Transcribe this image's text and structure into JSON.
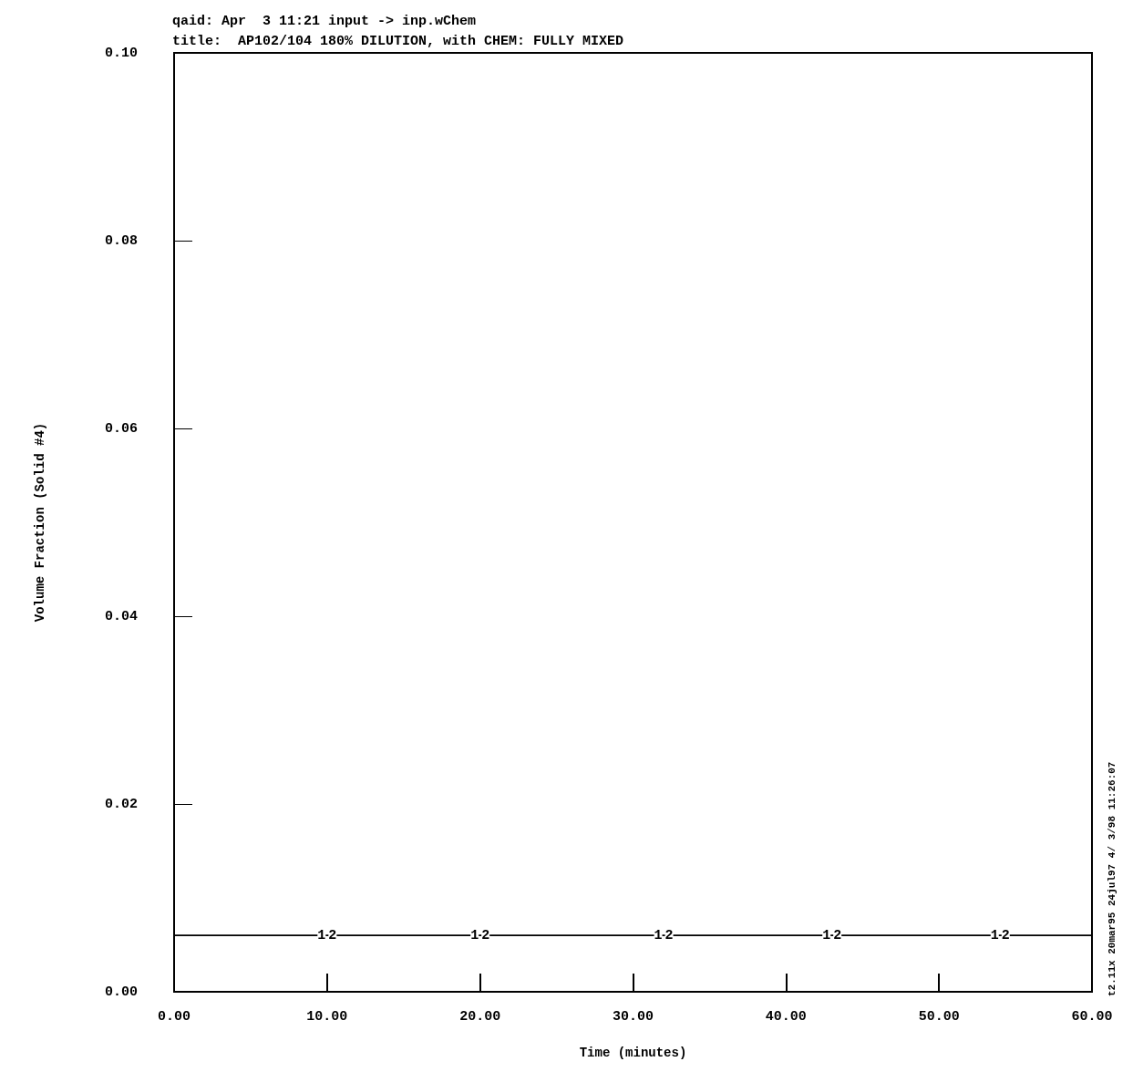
{
  "chart_data": {
    "type": "line",
    "title": "title:  AP102/104 180% DILUTION, with CHEM: FULLY MIXED",
    "xlabel": "Time (minutes)",
    "ylabel": "Volume Fraction (Solid #4)",
    "annotations": [
      "qaid: Apr  3 11:21 input -> inp.wChem",
      "t2.11x 20mar95 24jul97 4/ 3/98 11:26:07"
    ],
    "series": [
      {
        "name": "1",
        "color": "#000000",
        "x": [
          0,
          10,
          20,
          32,
          43,
          54,
          60
        ],
        "values": [
          0.006,
          0.006,
          0.006,
          0.006,
          0.006,
          0.006,
          0.006
        ]
      },
      {
        "name": "2",
        "color": "#000000",
        "x": [
          0,
          10,
          20,
          32,
          43,
          54,
          60
        ],
        "values": [
          0.006,
          0.006,
          0.006,
          0.006,
          0.006,
          0.006,
          0.006
        ]
      }
    ],
    "xlim": [
      0,
      60
    ],
    "ylim": [
      0,
      0.1
    ],
    "xticks": [
      {
        "value": 0,
        "label": "0.00"
      },
      {
        "value": 10,
        "label": "10.00"
      },
      {
        "value": 20,
        "label": "20.00"
      },
      {
        "value": 30,
        "label": "30.00"
      },
      {
        "value": 40,
        "label": "40.00"
      },
      {
        "value": 50,
        "label": "50.00"
      },
      {
        "value": 60,
        "label": "60.00"
      }
    ],
    "yticks": [
      {
        "value": 0,
        "label": "0.00"
      },
      {
        "value": 0.02,
        "label": "0.02"
      },
      {
        "value": 0.04,
        "label": "0.04"
      },
      {
        "value": 0.06,
        "label": "0.06"
      },
      {
        "value": 0.08,
        "label": "0.08"
      },
      {
        "value": 0.1,
        "label": "0.10"
      }
    ],
    "grid": false,
    "legend": false,
    "marker": "none",
    "line_style": "solid"
  }
}
